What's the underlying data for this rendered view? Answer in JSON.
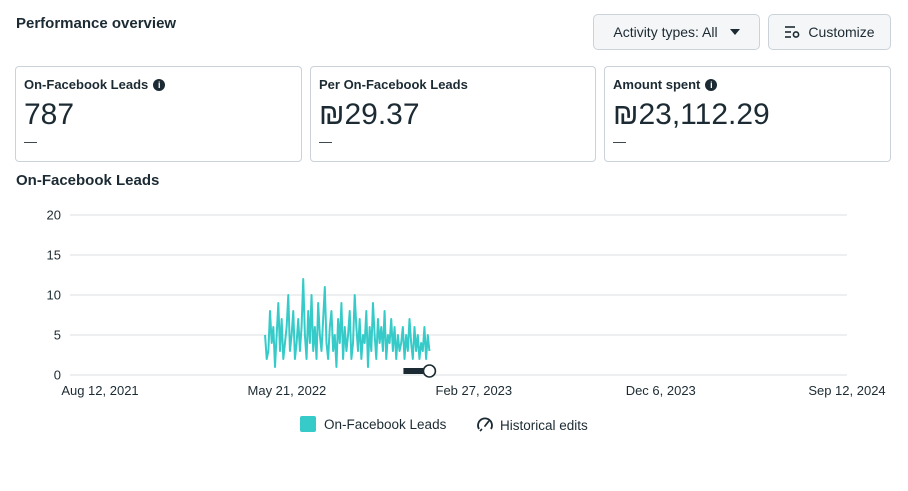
{
  "header": {
    "title": "Performance overview"
  },
  "toolbar": {
    "activity_label": "Activity types: All",
    "customize_label": "Customize"
  },
  "cards": [
    {
      "label": "On-Facebook Leads",
      "value": "787",
      "delta": "—",
      "info": true
    },
    {
      "label": "Per On-Facebook Leads",
      "value": "₪29.37",
      "delta": "—",
      "info": false
    },
    {
      "label": "Amount spent",
      "value": "₪23,112.29",
      "delta": "—",
      "info": true
    }
  ],
  "chart_section_title": "On-Facebook Leads",
  "chart_data": {
    "type": "line",
    "title": "On-Facebook Leads",
    "x_ticks": [
      "Aug 12, 2021",
      "May 21, 2022",
      "Feb 27, 2023",
      "Dec 6, 2023",
      "Sep 12, 2024"
    ],
    "y_ticks": [
      "0",
      "5",
      "10",
      "15",
      "20"
    ],
    "ylim": [
      0,
      20
    ],
    "grid": true,
    "legend_position": "bottom",
    "series": [
      {
        "name": "On-Facebook Leads",
        "color": "#36cbc8",
        "start_date": "2022-04-18",
        "end_date": "2022-12-22",
        "values": [
          5,
          2,
          3,
          8,
          4,
          6,
          1,
          5,
          9,
          3,
          7,
          2,
          4,
          6,
          10,
          3,
          5,
          8,
          2,
          4,
          7,
          3,
          6,
          12,
          5,
          2,
          8,
          4,
          10,
          3,
          6,
          2,
          9,
          5,
          3,
          7,
          11,
          4,
          2,
          6,
          8,
          3,
          5,
          1,
          7,
          4,
          9,
          2,
          6,
          3,
          5,
          8,
          2,
          4,
          10,
          6,
          3,
          7,
          2,
          5,
          4,
          8,
          1,
          6,
          3,
          9,
          5,
          2,
          7,
          4,
          6,
          3,
          8,
          2,
          5,
          4,
          7,
          3,
          6,
          2,
          5,
          3,
          4,
          6,
          2,
          5,
          3,
          7,
          4,
          2,
          6,
          3,
          5,
          2,
          4,
          3,
          6,
          2,
          5,
          3
        ]
      }
    ],
    "annotations": [
      {
        "name": "Historical edits",
        "icon": "historical-edits-icon"
      }
    ]
  },
  "legend": {
    "series_label": "On-Facebook Leads",
    "edits_label": "Historical edits"
  },
  "colors": {
    "series": "#36cbc8",
    "grid": "#dddfe2",
    "text": "#1c2b33"
  }
}
